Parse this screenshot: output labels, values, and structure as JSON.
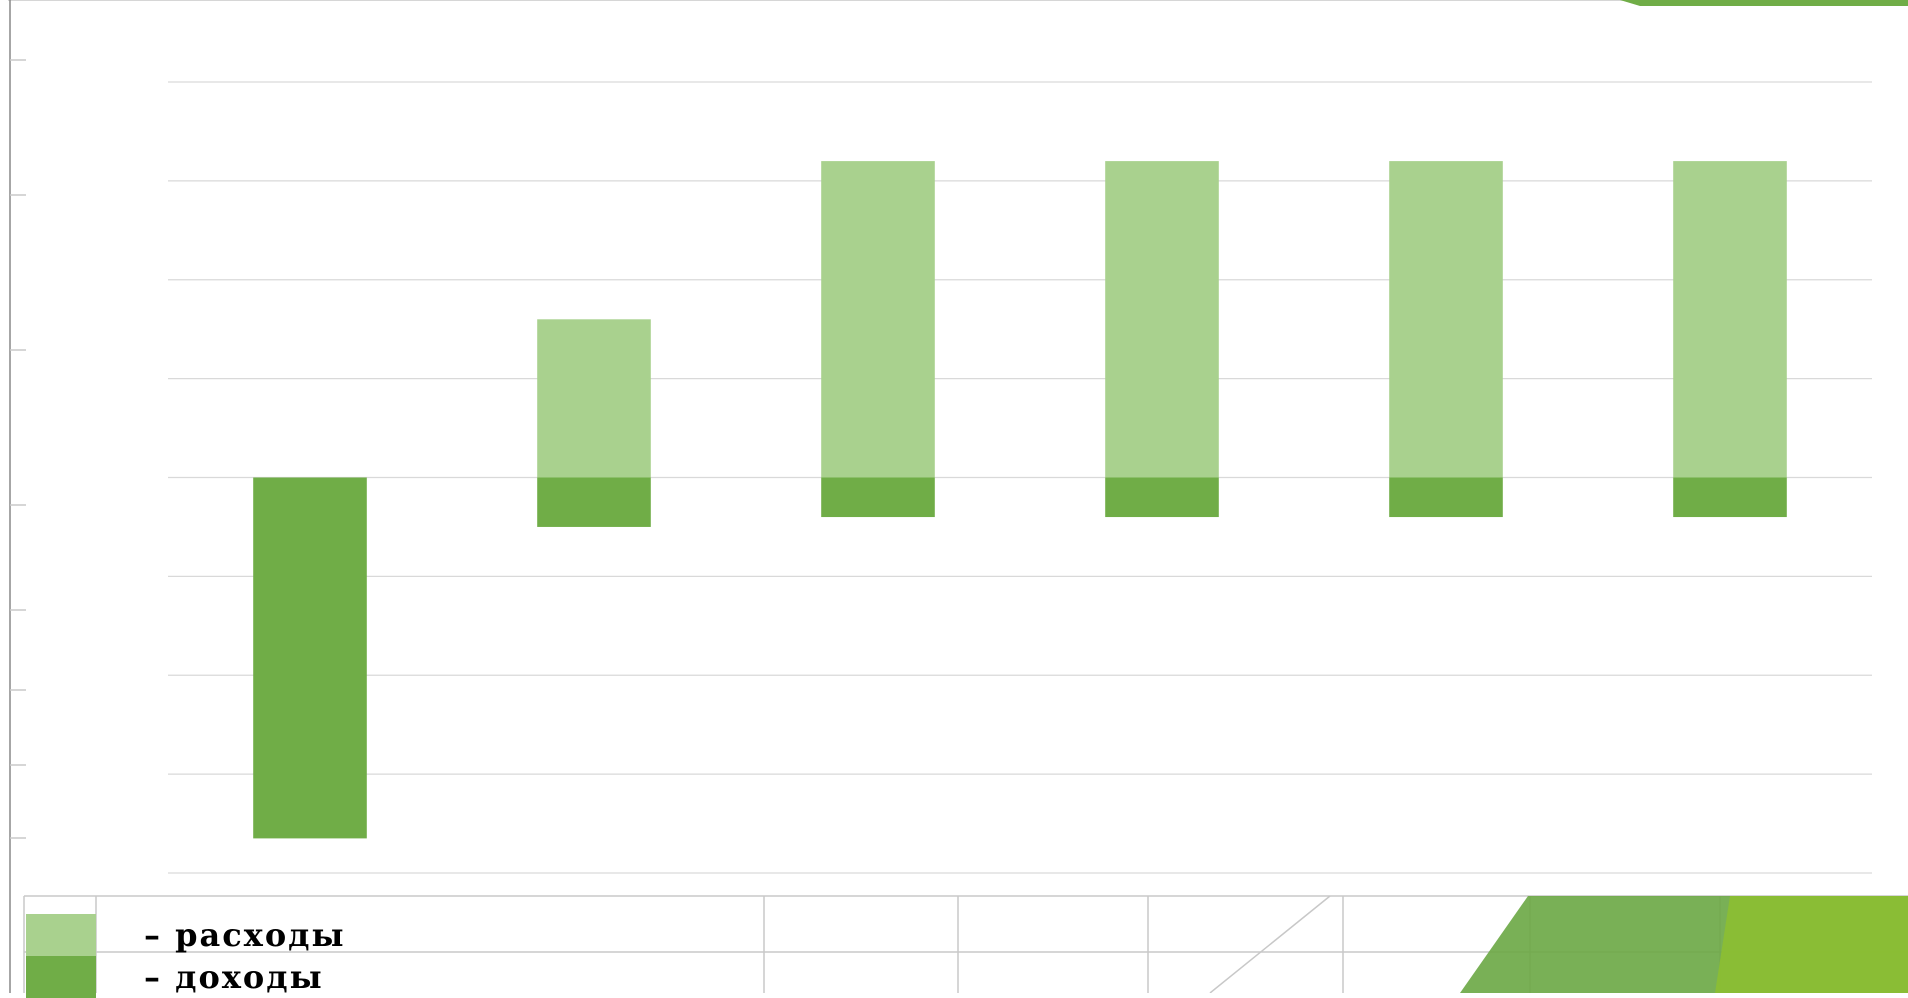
{
  "colors": {
    "expenses": "#a9d18e",
    "income": "#70ad47",
    "grid": "#d9d9d9",
    "table_line": "#c8c8c8",
    "decor_dark": "#6aa744",
    "decor_light": "#8dc02f"
  },
  "legend": {
    "expenses_label": "– расходы",
    "income_label": "– доходы"
  },
  "chart_data": {
    "type": "bar",
    "stacked": true,
    "categories": [
      "",
      "",
      "",
      "",
      "",
      ""
    ],
    "series": [
      {
        "name": "расходы",
        "color": "#a9d18e",
        "values": [
          0,
          1.6,
          3.2,
          3.2,
          3.2,
          3.2
        ]
      },
      {
        "name": "доходы",
        "color": "#70ad47",
        "values": [
          -3.65,
          -0.5,
          -0.4,
          -0.4,
          -0.4,
          -0.4
        ]
      }
    ],
    "ylim": [
      -4,
      4
    ],
    "grid": true,
    "legend_position": "bottom-left"
  }
}
